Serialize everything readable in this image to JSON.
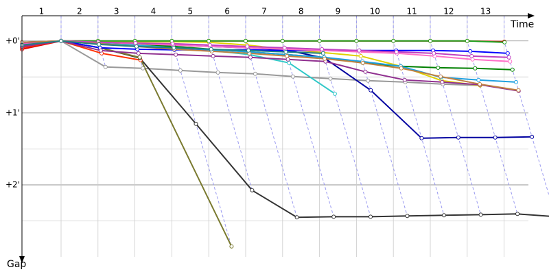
{
  "chart_data": {
    "type": "line",
    "x_label": "Time",
    "y_label": "Gap",
    "categories": [
      null,
      1,
      2,
      3,
      4,
      5,
      6,
      7,
      8,
      9,
      10,
      11,
      12,
      13
    ],
    "ylim": [
      -21,
      180
    ],
    "yticks": [
      {
        "value": 0,
        "label": "+0'"
      },
      {
        "value": 60,
        "label": "+1'"
      },
      {
        "value": 120,
        "label": "+2'"
      }
    ],
    "minor_yticks": [
      30,
      90,
      150
    ],
    "grid": true,
    "series": [
      {
        "color": "#e00000",
        "values": [
          6.9,
          0,
          0,
          0,
          0,
          0,
          0,
          0,
          0,
          0,
          0,
          0,
          0,
          0.6
        ]
      },
      {
        "color": "#ff3000",
        "values": [
          5.7,
          0,
          10.3,
          16,
          null,
          null,
          null,
          null,
          null,
          null,
          null,
          null,
          null,
          null
        ]
      },
      {
        "color": "#999999",
        "values": [
          2.3,
          0,
          21.7,
          22.8,
          24.6,
          26.3,
          27.4,
          29.7,
          31.4,
          33.1,
          34.3,
          36,
          37.1,
          null
        ]
      },
      {
        "color": "#333333",
        "values": [
          3.4,
          0,
          5.7,
          14.3,
          69.1,
          124.5,
          147,
          146.5,
          146.5,
          145.9,
          145.3,
          144.8,
          144.2,
          146.5
        ]
      },
      {
        "color": "#7a7a30",
        "values": [
          4,
          0,
          5.7,
          13.7,
          171.3,
          null,
          null,
          null,
          null,
          null,
          null,
          null,
          null,
          null
        ]
      },
      {
        "color": "#e0d000",
        "values": [
          1.1,
          0,
          0.6,
          0.6,
          0.6,
          1.1,
          3.4,
          6.9,
          9.7,
          12.6,
          21.1,
          33.1,
          37.1,
          null
        ]
      },
      {
        "color": "#30c8c8",
        "values": [
          1.7,
          0,
          1.7,
          3.4,
          5.7,
          8,
          11.4,
          18.3,
          44,
          null,
          null,
          null,
          null,
          null
        ]
      },
      {
        "color": "#0000a0",
        "values": [
          1.1,
          0,
          1.1,
          2.3,
          3.4,
          4.6,
          5.7,
          7.4,
          14.3,
          41.1,
          81.1,
          80.5,
          80.5,
          79.9
        ]
      },
      {
        "color": "#0000ff",
        "values": [
          4.6,
          0,
          5.7,
          6.9,
          7.4,
          7.4,
          7.4,
          8,
          8,
          8,
          8,
          8,
          8.6,
          10.3
        ]
      },
      {
        "color": "#20a020",
        "values": [
          2.9,
          0,
          0,
          0,
          0,
          0,
          0,
          0,
          0,
          0,
          0,
          0,
          0,
          1.1
        ]
      },
      {
        "color": "#008000",
        "values": [
          1.7,
          0,
          1.1,
          2.3,
          4.6,
          6.9,
          9.1,
          11.4,
          13.7,
          18.3,
          21.1,
          22.3,
          22.8,
          24
        ]
      },
      {
        "color": "#903090",
        "values": [
          4.6,
          0,
          8,
          10.3,
          11.4,
          12.6,
          13.7,
          15.4,
          17.1,
          25.7,
          32.5,
          34.3,
          36.5,
          41.7
        ]
      },
      {
        "color": "#20a0e0",
        "values": [
          2.3,
          0,
          2.3,
          4,
          5.7,
          7.4,
          9.1,
          11.4,
          13.7,
          17.1,
          21.1,
          30.3,
          32.5,
          34.3
        ]
      },
      {
        "color": "#ff70c8",
        "values": [
          2.3,
          0,
          1.1,
          2.3,
          3.4,
          4.6,
          5.7,
          6.9,
          8,
          9.1,
          10.3,
          12.6,
          15.4,
          17.1
        ]
      },
      {
        "color": "#c040c0",
        "values": [
          1.7,
          0,
          1.1,
          1.7,
          2.3,
          3.4,
          4.6,
          5.7,
          6.9,
          8,
          9.1,
          10.3,
          12.6,
          13.7
        ]
      },
      {
        "color": "#c08040",
        "values": [
          1.1,
          0,
          2.3,
          4.6,
          6.9,
          8.6,
          10.3,
          12.6,
          14.8,
          18.3,
          22.8,
          29.7,
          36,
          41.1
        ]
      },
      {
        "color": "#208080",
        "values": [
          3.4,
          0,
          2.9,
          4.6,
          5.7,
          6.9,
          8,
          9.1,
          10.3,
          null,
          null,
          null,
          null,
          null
        ]
      }
    ]
  }
}
